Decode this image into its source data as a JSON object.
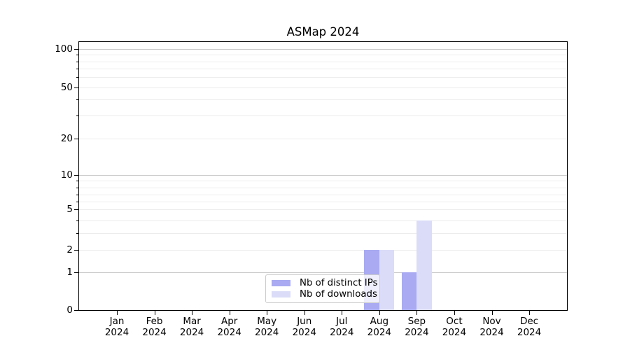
{
  "figure": {
    "title": "ASMap 2024"
  },
  "chart_data": {
    "type": "bar",
    "title": "ASMap 2024",
    "x_year": "2024",
    "categories": [
      "Jan",
      "Feb",
      "Mar",
      "Apr",
      "May",
      "Jun",
      "Jul",
      "Aug",
      "Sep",
      "Oct",
      "Nov",
      "Dec"
    ],
    "series": [
      {
        "name": "Nb of distinct IPs",
        "color": "#a9aaf1",
        "values": [
          0,
          0,
          0,
          0,
          0,
          0,
          0,
          2,
          1,
          0,
          0,
          0
        ]
      },
      {
        "name": "Nb of downloads",
        "color": "#dbdcf8",
        "values": [
          0,
          0,
          0,
          0,
          0,
          0,
          0,
          2,
          4,
          0,
          0,
          0
        ]
      }
    ],
    "yscale": "symlog",
    "ylim": [
      0,
      110
    ],
    "y_major_ticks": [
      0,
      1,
      2,
      5,
      10,
      20,
      50,
      100
    ],
    "y_major_gridlines": [
      1,
      10,
      100
    ],
    "y_minor_gridlines": [
      2,
      3,
      4,
      5,
      6,
      7,
      8,
      9,
      20,
      30,
      40,
      50,
      60,
      70,
      80,
      90
    ],
    "grid": "horizontal major+minor",
    "legend_position": "lower center",
    "colors": {
      "bar_distinct_ips": "#a9aaf1",
      "bar_downloads": "#dbdcf8",
      "major_grid": "#c8c8c8",
      "minor_grid": "#ececec",
      "spine": "#000000",
      "legend_border": "#cccccc"
    }
  }
}
